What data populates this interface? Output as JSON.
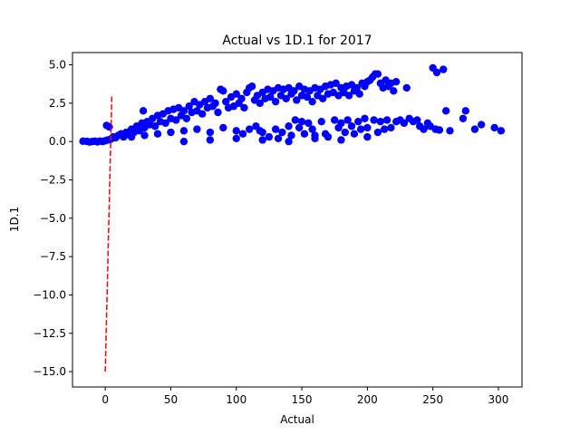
{
  "chart_data": {
    "type": "scatter",
    "title": "Actual vs 1D.1 for 2017",
    "xlabel": "Actual",
    "ylabel": "1D.1",
    "xlim": [
      -25,
      318
    ],
    "ylim": [
      -16,
      5.8
    ],
    "xticks": [
      0,
      50,
      100,
      150,
      200,
      250,
      300
    ],
    "xtick_labels": [
      "0",
      "50",
      "100",
      "150",
      "200",
      "250",
      "300"
    ],
    "yticks": [
      5.0,
      2.5,
      0.0,
      -2.5,
      -5.0,
      -7.5,
      -10.0,
      -12.5,
      -15.0
    ],
    "ytick_labels": [
      "5.0",
      "2.5",
      "0.0",
      "−2.5",
      "−5.0",
      "−7.5",
      "−10.0",
      "−12.5",
      "−15.0"
    ],
    "grid": false,
    "series": [
      {
        "marker_color": "#0000ff",
        "points": [
          [
            -17,
            0.02
          ],
          [
            -14,
            0.01
          ],
          [
            -12,
            -0.03
          ],
          [
            -10,
            0.0
          ],
          [
            -8,
            0.02
          ],
          [
            -6,
            -0.02
          ],
          [
            -4,
            0.03
          ],
          [
            -2,
            0.0
          ],
          [
            0,
            0.05
          ],
          [
            1,
            1.05
          ],
          [
            2,
            0.1
          ],
          [
            3,
            0.95
          ],
          [
            4,
            0.15
          ],
          [
            5,
            0.2
          ],
          [
            6,
            0.3
          ],
          [
            8,
            0.25
          ],
          [
            10,
            0.4
          ],
          [
            12,
            0.5
          ],
          [
            14,
            0.3
          ],
          [
            16,
            0.6
          ],
          [
            18,
            0.45
          ],
          [
            20,
            0.8
          ],
          [
            22,
            0.6
          ],
          [
            24,
            1.0
          ],
          [
            26,
            0.7
          ],
          [
            28,
            1.2
          ],
          [
            29,
            2.0
          ],
          [
            30,
            0.9
          ],
          [
            32,
            1.3
          ],
          [
            34,
            1.1
          ],
          [
            36,
            1.5
          ],
          [
            38,
            1.0
          ],
          [
            40,
            1.7
          ],
          [
            42,
            1.3
          ],
          [
            44,
            1.8
          ],
          [
            46,
            1.2
          ],
          [
            48,
            2.0
          ],
          [
            50,
            1.5
          ],
          [
            52,
            2.1
          ],
          [
            54,
            1.4
          ],
          [
            56,
            2.2
          ],
          [
            58,
            1.7
          ],
          [
            60,
            2.0
          ],
          [
            62,
            1.5
          ],
          [
            64,
            2.3
          ],
          [
            66,
            1.9
          ],
          [
            68,
            2.6
          ],
          [
            70,
            2.0
          ],
          [
            72,
            2.4
          ],
          [
            74,
            1.8
          ],
          [
            76,
            2.6
          ],
          [
            78,
            2.2
          ],
          [
            80,
            2.8
          ],
          [
            82,
            2.3
          ],
          [
            84,
            2.5
          ],
          [
            86,
            1.9
          ],
          [
            88,
            3.4
          ],
          [
            90,
            3.3
          ],
          [
            92,
            2.6
          ],
          [
            94,
            2.2
          ],
          [
            96,
            2.9
          ],
          [
            98,
            2.3
          ],
          [
            100,
            3.1
          ],
          [
            102,
            2.5
          ],
          [
            104,
            2.8
          ],
          [
            106,
            2.2
          ],
          [
            108,
            3.2
          ],
          [
            110,
            3.5
          ],
          [
            112,
            3.6
          ],
          [
            114,
            2.7
          ],
          [
            116,
            3.0
          ],
          [
            118,
            2.5
          ],
          [
            120,
            3.2
          ],
          [
            122,
            2.8
          ],
          [
            124,
            3.4
          ],
          [
            126,
            2.9
          ],
          [
            128,
            3.3
          ],
          [
            130,
            2.6
          ],
          [
            132,
            3.5
          ],
          [
            134,
            3.0
          ],
          [
            136,
            3.4
          ],
          [
            138,
            2.8
          ],
          [
            140,
            3.5
          ],
          [
            142,
            3.1
          ],
          [
            144,
            3.3
          ],
          [
            146,
            2.7
          ],
          [
            148,
            3.6
          ],
          [
            150,
            3.0
          ],
          [
            152,
            3.4
          ],
          [
            154,
            2.9
          ],
          [
            156,
            3.3
          ],
          [
            158,
            2.6
          ],
          [
            160,
            3.5
          ],
          [
            162,
            3.0
          ],
          [
            164,
            3.4
          ],
          [
            166,
            2.8
          ],
          [
            168,
            3.6
          ],
          [
            170,
            3.1
          ],
          [
            172,
            3.7
          ],
          [
            174,
            3.2
          ],
          [
            176,
            3.8
          ],
          [
            178,
            3.0
          ],
          [
            180,
            3.5
          ],
          [
            182,
            3.2
          ],
          [
            184,
            3.6
          ],
          [
            186,
            3.0
          ],
          [
            188,
            3.7
          ],
          [
            190,
            3.3
          ],
          [
            192,
            3.5
          ],
          [
            194,
            3.1
          ],
          [
            196,
            3.8
          ],
          [
            198,
            3.6
          ],
          [
            200,
            3.9
          ],
          [
            202,
            4.0
          ],
          [
            204,
            4.2
          ],
          [
            206,
            4.4
          ],
          [
            208,
            4.4
          ],
          [
            210,
            3.8
          ],
          [
            212,
            3.5
          ],
          [
            214,
            4.0
          ],
          [
            216,
            3.6
          ],
          [
            218,
            3.8
          ],
          [
            220,
            3.3
          ],
          [
            222,
            3.9
          ],
          [
            230,
            3.5
          ],
          [
            250,
            4.8
          ],
          [
            253,
            4.5
          ],
          [
            258,
            4.7
          ],
          [
            20,
            0.3
          ],
          [
            30,
            0.4
          ],
          [
            40,
            0.5
          ],
          [
            50,
            0.6
          ],
          [
            60,
            0.7
          ],
          [
            70,
            0.8
          ],
          [
            80,
            0.6
          ],
          [
            90,
            0.9
          ],
          [
            100,
            0.7
          ],
          [
            105,
            0.5
          ],
          [
            110,
            0.8
          ],
          [
            115,
            1.0
          ],
          [
            118,
            0.7
          ],
          [
            120,
            0.6
          ],
          [
            125,
            0.3
          ],
          [
            130,
            0.8
          ],
          [
            132,
            0.2
          ],
          [
            135,
            0.6
          ],
          [
            140,
            1.0
          ],
          [
            142,
            0.4
          ],
          [
            145,
            1.4
          ],
          [
            148,
            0.9
          ],
          [
            150,
            1.3
          ],
          [
            152,
            0.5
          ],
          [
            155,
            1.2
          ],
          [
            158,
            0.8
          ],
          [
            160,
            0.4
          ],
          [
            165,
            1.3
          ],
          [
            168,
            0.5
          ],
          [
            170,
            0.3
          ],
          [
            175,
            1.4
          ],
          [
            178,
            0.9
          ],
          [
            180,
            1.2
          ],
          [
            183,
            0.6
          ],
          [
            185,
            1.4
          ],
          [
            188,
            1.0
          ],
          [
            190,
            0.5
          ],
          [
            193,
            1.3
          ],
          [
            195,
            0.8
          ],
          [
            198,
            1.5
          ],
          [
            200,
            0.9
          ],
          [
            205,
            1.4
          ],
          [
            208,
            0.6
          ],
          [
            210,
            1.3
          ],
          [
            213,
            0.8
          ],
          [
            215,
            1.4
          ],
          [
            218,
            0.9
          ],
          [
            222,
            1.3
          ],
          [
            225,
            1.4
          ],
          [
            228,
            1.2
          ],
          [
            232,
            1.5
          ],
          [
            235,
            1.3
          ],
          [
            238,
            1.4
          ],
          [
            240,
            1.0
          ],
          [
            243,
            0.8
          ],
          [
            246,
            1.2
          ],
          [
            248,
            1.0
          ],
          [
            252,
            0.8
          ],
          [
            255,
            0.75
          ],
          [
            260,
            2.0
          ],
          [
            263,
            0.7
          ],
          [
            273,
            1.5
          ],
          [
            275,
            2.0
          ],
          [
            282,
            0.8
          ],
          [
            287,
            1.1
          ],
          [
            297,
            0.9
          ],
          [
            302,
            0.7
          ],
          [
            60,
            0.0
          ],
          [
            80,
            0.1
          ],
          [
            100,
            0.2
          ],
          [
            120,
            0.1
          ],
          [
            140,
            0.0
          ],
          [
            160,
            0.2
          ],
          [
            180,
            0.1
          ],
          [
            200,
            0.3
          ]
        ]
      },
      {
        "line_color": "#ff0000",
        "dash": true,
        "points": [
          [
            0,
            -15.0
          ],
          [
            5,
            3.0
          ]
        ]
      }
    ]
  }
}
